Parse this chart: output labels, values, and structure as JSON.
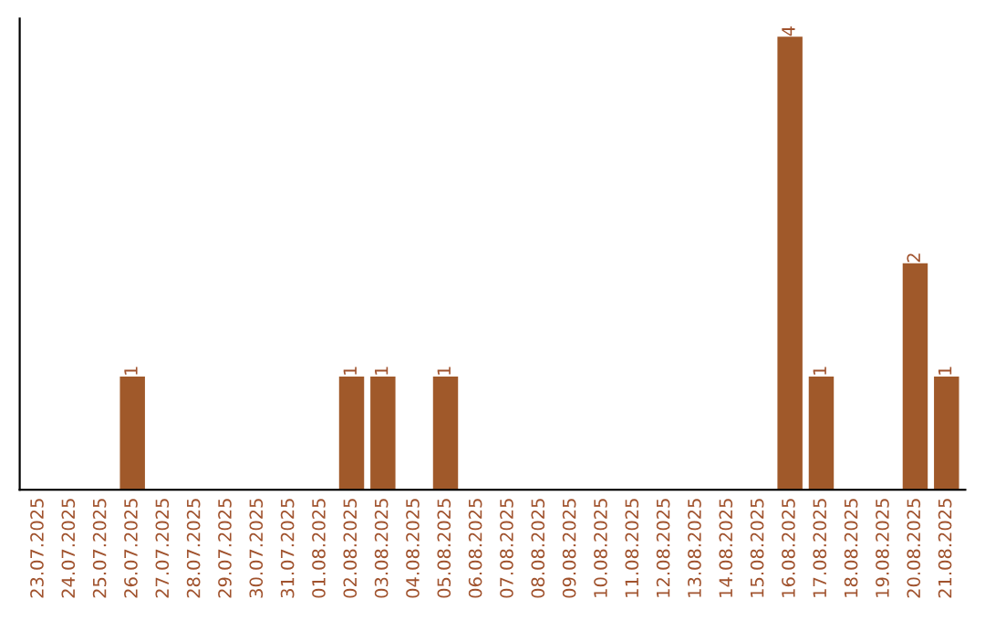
{
  "chart_data": {
    "type": "bar",
    "categories": [
      "23.07.2025",
      "24.07.2025",
      "25.07.2025",
      "26.07.2025",
      "27.07.2025",
      "28.07.2025",
      "29.07.2025",
      "30.07.2025",
      "31.07.2025",
      "01.08.2025",
      "02.08.2025",
      "03.08.2025",
      "04.08.2025",
      "05.08.2025",
      "06.08.2025",
      "07.08.2025",
      "08.08.2025",
      "09.08.2025",
      "10.08.2025",
      "11.08.2025",
      "12.08.2025",
      "13.08.2025",
      "14.08.2025",
      "15.08.2025",
      "16.08.2025",
      "17.08.2025",
      "18.08.2025",
      "19.08.2025",
      "20.08.2025",
      "21.08.2025"
    ],
    "values": [
      0,
      0,
      0,
      1,
      0,
      0,
      0,
      0,
      0,
      0,
      1,
      1,
      0,
      1,
      0,
      0,
      0,
      0,
      0,
      0,
      0,
      0,
      0,
      0,
      4,
      1,
      0,
      0,
      2,
      1
    ],
    "value_labels": [
      null,
      null,
      null,
      "1",
      null,
      null,
      null,
      null,
      null,
      null,
      "1",
      "1",
      null,
      "1",
      null,
      null,
      null,
      null,
      null,
      null,
      null,
      null,
      null,
      null,
      "4",
      "1",
      null,
      null,
      "2",
      "1"
    ],
    "color": "#a0592a",
    "grid": false,
    "legend": false
  }
}
